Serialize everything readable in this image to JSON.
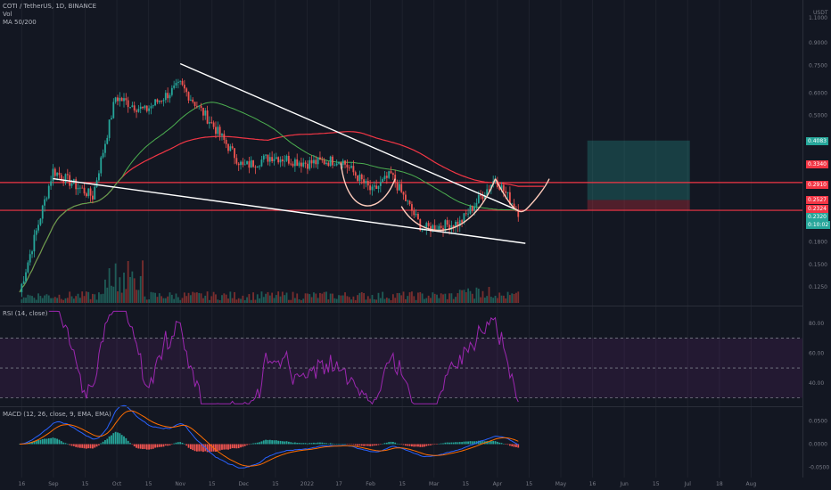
{
  "header": {
    "symbol": "COTI / TetherUS, 1D, BINANCE",
    "vol_label": "Vol",
    "ma_label": "MA 50/200"
  },
  "rsi_label": "RSI (14, close)",
  "macd_label": "MACD (12, 26, close, 9, EMA, EMA)",
  "axis_currency": "USDT",
  "price_tags": [
    {
      "label": "0.4083",
      "color": "#26a69a"
    },
    {
      "label": "0.3340",
      "color": "#f23645"
    },
    {
      "label": "0.2910",
      "color": "#f23645"
    },
    {
      "label": "0.2527",
      "color": "#f23645"
    },
    {
      "label": "0.2324",
      "color": "#f23645"
    },
    {
      "label": "0.2320",
      "color": "#26a69a"
    },
    {
      "label": "0:10:02",
      "color": "#26a69a"
    }
  ],
  "colors": {
    "background": "#131722",
    "up": "#26a69a",
    "down": "#ef5350",
    "ma50": "#4caf50",
    "ma200": "#f23645",
    "rsi": "#9c27b0",
    "macd": "#2962ff",
    "signal": "#ff6d00",
    "trendline": "#ffffff",
    "pattern": "#ffccbc",
    "level": "#f23645"
  },
  "chart_data": [
    {
      "type": "candlestick",
      "title": "COTI / TetherUS, 1D, BINANCE",
      "y_scale": "log",
      "ylim": [
        0.11,
        1.2
      ],
      "y_ticks": [
        "1.1000",
        "0.9000",
        "0.7500",
        "0.6000",
        "0.5000",
        "0.2300",
        "0.1800",
        "0.1500",
        "0.1250"
      ],
      "x_ticks": [
        "16",
        "Sep",
        "15",
        "Oct",
        "15",
        "Nov",
        "15",
        "Dec",
        "15",
        "2022",
        "17",
        "Feb",
        "15",
        "Mar",
        "15",
        "Apr",
        "15",
        "May",
        "16",
        "Jun",
        "15",
        "Jul",
        "18",
        "Aug"
      ],
      "key_closes": [
        {
          "date": "Aug 16",
          "close": 0.12
        },
        {
          "date": "Sep 1",
          "close": 0.32
        },
        {
          "date": "Sep 20",
          "close": 0.26
        },
        {
          "date": "Oct 1",
          "close": 0.58
        },
        {
          "date": "Oct 15",
          "close": 0.52
        },
        {
          "date": "Nov 1",
          "close": 0.64
        },
        {
          "date": "Nov 15",
          "close": 0.48
        },
        {
          "date": "Dec 1",
          "close": 0.33
        },
        {
          "date": "Dec 15",
          "close": 0.36
        },
        {
          "date": "Jan 1",
          "close": 0.34
        },
        {
          "date": "Jan 17",
          "close": 0.35
        },
        {
          "date": "Feb 1",
          "close": 0.27
        },
        {
          "date": "Feb 10",
          "close": 0.31
        },
        {
          "date": "Feb 25",
          "close": 0.2
        },
        {
          "date": "Mar 15",
          "close": 0.21
        },
        {
          "date": "Apr 1",
          "close": 0.3
        },
        {
          "date": "Apr 12",
          "close": 0.23
        }
      ],
      "horizontal_levels": [
        0.291,
        0.2324
      ],
      "position_box": {
        "entry": 0.2527,
        "target": 0.4083,
        "stop": 0.2324
      },
      "series": [
        {
          "name": "MA 50",
          "color": "#4caf50"
        },
        {
          "name": "MA 200",
          "color": "#f23645"
        }
      ]
    },
    {
      "type": "line",
      "title": "RSI (14, close)",
      "ylim": [
        25,
        90
      ],
      "y_ticks": [
        "80.00",
        "60.00",
        "40.00"
      ],
      "bands": [
        70,
        50,
        30
      ]
    },
    {
      "type": "bar",
      "title": "MACD (12, 26, close, 9, EMA, EMA)",
      "ylim": [
        -0.07,
        0.07
      ],
      "y_ticks": [
        "0.0500",
        "0.0000",
        "-0.0500"
      ],
      "series": [
        {
          "name": "MACD",
          "color": "#2962ff"
        },
        {
          "name": "Signal",
          "color": "#ff6d00"
        }
      ]
    }
  ]
}
